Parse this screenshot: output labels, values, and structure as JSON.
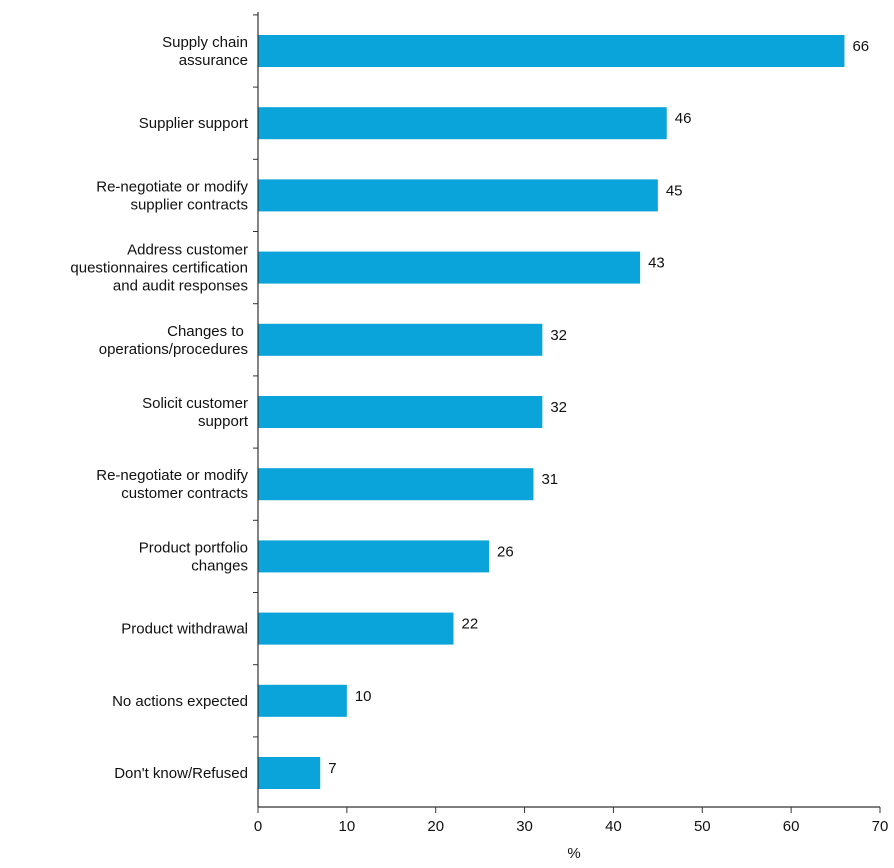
{
  "chart_data": {
    "type": "bar",
    "orientation": "horizontal",
    "categories": [
      [
        "Supply chain",
        "assurance"
      ],
      [
        "Supplier support"
      ],
      [
        "Re-negotiate or modify",
        "supplier contracts"
      ],
      [
        "Address customer",
        "questionnaires certification",
        "and audit responses"
      ],
      [
        "Changes to ",
        "operations/procedures"
      ],
      [
        "Solicit customer",
        "support"
      ],
      [
        "Re-negotiate or modify",
        "customer contracts"
      ],
      [
        "Product portfolio",
        "changes"
      ],
      [
        "Product withdrawal"
      ],
      [
        "No actions expected"
      ],
      [
        "Don't know/Refused"
      ]
    ],
    "values": [
      66,
      46,
      45,
      43,
      32,
      32,
      31,
      26,
      22,
      10,
      7
    ],
    "value_labels": [
      "66",
      "46",
      "45",
      "43",
      "32",
      "32",
      "31",
      "26",
      "22",
      "10",
      "7"
    ],
    "xlabel": "%",
    "xlim": [
      0,
      70
    ],
    "xticks": [
      0,
      10,
      20,
      30,
      40,
      50,
      60,
      70
    ],
    "grid": false,
    "bar_color": "#0aa3da",
    "axis_color": "#333333"
  }
}
